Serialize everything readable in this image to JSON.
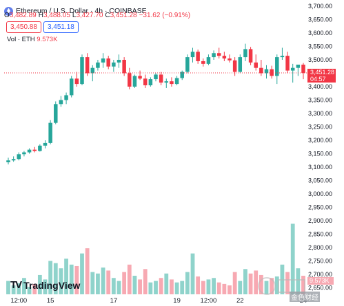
{
  "header": {
    "symbol": "Ethereum / U.S. Dollar · 4h · COINBASE",
    "ohlc": [
      {
        "k": "O",
        "v": "3,482.89"
      },
      {
        "k": "H",
        "v": "3,488.05"
      },
      {
        "k": "L",
        "v": "3,427.70"
      },
      {
        "k": "C",
        "v": "3,451.28"
      },
      {
        "k": "",
        "v": "−31.62 (−0.91%)"
      }
    ],
    "sell_price": "3,450.88",
    "buy_price": "3,451.18",
    "volume_label": "Vol · ETH",
    "volume_value": "9.573K"
  },
  "price_label": {
    "price": "3,451.28",
    "countdown": "04:57"
  },
  "volume_label_axis": "9.573K",
  "watermark": {
    "text": "金色财经"
  },
  "branding": {
    "name": "TradingView"
  },
  "colors": {
    "up": "#26a69a",
    "down": "#f23645",
    "vol_up": "#8fd3cb",
    "vol_down": "#f7a9b2"
  },
  "chart_data": {
    "type": "candlestick",
    "symbol": "Ethereum / U.S. Dollar",
    "interval": "4h",
    "exchange": "COINBASE",
    "y_ticks": [
      3100,
      3150,
      3200,
      3250,
      3300,
      3350,
      3400,
      3450,
      3500,
      3550,
      3600,
      3650,
      3700
    ],
    "volume_ticks": [
      2650,
      2700,
      2750,
      2800,
      2850,
      2900
    ],
    "ylim": [
      3100,
      3700
    ],
    "x_ticks": [
      {
        "label": "12:00",
        "index": 2
      },
      {
        "label": "15",
        "index": 8
      },
      {
        "label": "17",
        "index": 20
      },
      {
        "label": "19",
        "index": 32
      },
      {
        "label": "12:00",
        "index": 38
      },
      {
        "label": "22",
        "index": 44
      },
      {
        "label": "24",
        "index": 56
      }
    ],
    "last_price": 3451.28,
    "candles": [
      {
        "o": 3118,
        "h": 3135,
        "l": 3110,
        "c": 3125,
        "v": 0.18
      },
      {
        "o": 3125,
        "h": 3140,
        "l": 3120,
        "c": 3130,
        "v": 0.12
      },
      {
        "o": 3130,
        "h": 3155,
        "l": 3125,
        "c": 3148,
        "v": 0.15
      },
      {
        "o": 3148,
        "h": 3160,
        "l": 3140,
        "c": 3155,
        "v": 0.22
      },
      {
        "o": 3155,
        "h": 3170,
        "l": 3150,
        "c": 3165,
        "v": 0.1
      },
      {
        "o": 3165,
        "h": 3175,
        "l": 3155,
        "c": 3160,
        "v": 0.14
      },
      {
        "o": 3160,
        "h": 3185,
        "l": 3158,
        "c": 3180,
        "v": 0.26
      },
      {
        "o": 3180,
        "h": 3200,
        "l": 3170,
        "c": 3190,
        "v": 0.2
      },
      {
        "o": 3190,
        "h": 3275,
        "l": 3185,
        "c": 3265,
        "v": 0.45
      },
      {
        "o": 3265,
        "h": 3345,
        "l": 3260,
        "c": 3335,
        "v": 0.42
      },
      {
        "o": 3335,
        "h": 3365,
        "l": 3325,
        "c": 3350,
        "v": 0.35
      },
      {
        "o": 3350,
        "h": 3378,
        "l": 3335,
        "c": 3368,
        "v": 0.48
      },
      {
        "o": 3368,
        "h": 3440,
        "l": 3360,
        "c": 3430,
        "v": 0.4
      },
      {
        "o": 3430,
        "h": 3455,
        "l": 3400,
        "c": 3410,
        "v": 0.38
      },
      {
        "o": 3410,
        "h": 3520,
        "l": 3405,
        "c": 3510,
        "v": 0.55
      },
      {
        "o": 3510,
        "h": 3525,
        "l": 3440,
        "c": 3450,
        "v": 0.62
      },
      {
        "o": 3450,
        "h": 3480,
        "l": 3420,
        "c": 3470,
        "v": 0.3
      },
      {
        "o": 3470,
        "h": 3500,
        "l": 3460,
        "c": 3490,
        "v": 0.28
      },
      {
        "o": 3490,
        "h": 3525,
        "l": 3470,
        "c": 3505,
        "v": 0.36
      },
      {
        "o": 3505,
        "h": 3515,
        "l": 3465,
        "c": 3475,
        "v": 0.32
      },
      {
        "o": 3475,
        "h": 3500,
        "l": 3455,
        "c": 3490,
        "v": 0.22
      },
      {
        "o": 3490,
        "h": 3520,
        "l": 3470,
        "c": 3500,
        "v": 0.18
      },
      {
        "o": 3500,
        "h": 3510,
        "l": 3440,
        "c": 3450,
        "v": 0.3
      },
      {
        "o": 3450,
        "h": 3470,
        "l": 3390,
        "c": 3400,
        "v": 0.4
      },
      {
        "o": 3400,
        "h": 3445,
        "l": 3395,
        "c": 3440,
        "v": 0.25
      },
      {
        "o": 3440,
        "h": 3460,
        "l": 3425,
        "c": 3430,
        "v": 0.2
      },
      {
        "o": 3430,
        "h": 3445,
        "l": 3395,
        "c": 3405,
        "v": 0.34
      },
      {
        "o": 3405,
        "h": 3435,
        "l": 3400,
        "c": 3428,
        "v": 0.16
      },
      {
        "o": 3428,
        "h": 3450,
        "l": 3420,
        "c": 3445,
        "v": 0.18
      },
      {
        "o": 3445,
        "h": 3455,
        "l": 3405,
        "c": 3415,
        "v": 0.22
      },
      {
        "o": 3415,
        "h": 3430,
        "l": 3395,
        "c": 3420,
        "v": 0.28
      },
      {
        "o": 3420,
        "h": 3435,
        "l": 3400,
        "c": 3410,
        "v": 0.2
      },
      {
        "o": 3410,
        "h": 3440,
        "l": 3405,
        "c": 3432,
        "v": 0.16
      },
      {
        "o": 3432,
        "h": 3460,
        "l": 3425,
        "c": 3455,
        "v": 0.18
      },
      {
        "o": 3455,
        "h": 3520,
        "l": 3450,
        "c": 3510,
        "v": 0.3
      },
      {
        "o": 3510,
        "h": 3545,
        "l": 3490,
        "c": 3530,
        "v": 0.55
      },
      {
        "o": 3530,
        "h": 3538,
        "l": 3485,
        "c": 3495,
        "v": 0.24
      },
      {
        "o": 3495,
        "h": 3505,
        "l": 3475,
        "c": 3485,
        "v": 0.18
      },
      {
        "o": 3485,
        "h": 3520,
        "l": 3480,
        "c": 3510,
        "v": 0.2
      },
      {
        "o": 3510,
        "h": 3535,
        "l": 3500,
        "c": 3525,
        "v": 0.22
      },
      {
        "o": 3525,
        "h": 3545,
        "l": 3505,
        "c": 3515,
        "v": 0.16
      },
      {
        "o": 3515,
        "h": 3530,
        "l": 3495,
        "c": 3505,
        "v": 0.14
      },
      {
        "o": 3505,
        "h": 3520,
        "l": 3490,
        "c": 3498,
        "v": 0.12
      },
      {
        "o": 3498,
        "h": 3510,
        "l": 3440,
        "c": 3455,
        "v": 0.3
      },
      {
        "o": 3455,
        "h": 3520,
        "l": 3450,
        "c": 3510,
        "v": 0.18
      },
      {
        "o": 3510,
        "h": 3560,
        "l": 3495,
        "c": 3540,
        "v": 0.34
      },
      {
        "o": 3540,
        "h": 3548,
        "l": 3480,
        "c": 3490,
        "v": 0.28
      },
      {
        "o": 3490,
        "h": 3520,
        "l": 3460,
        "c": 3470,
        "v": 0.32
      },
      {
        "o": 3470,
        "h": 3500,
        "l": 3440,
        "c": 3450,
        "v": 0.26
      },
      {
        "o": 3450,
        "h": 3480,
        "l": 3430,
        "c": 3465,
        "v": 0.18
      },
      {
        "o": 3465,
        "h": 3478,
        "l": 3430,
        "c": 3440,
        "v": 0.22
      },
      {
        "o": 3440,
        "h": 3520,
        "l": 3410,
        "c": 3510,
        "v": 0.24
      },
      {
        "o": 3510,
        "h": 3545,
        "l": 3500,
        "c": 3515,
        "v": 0.4
      },
      {
        "o": 3515,
        "h": 3530,
        "l": 3450,
        "c": 3460,
        "v": 0.3
      },
      {
        "o": 3460,
        "h": 3485,
        "l": 3415,
        "c": 3470,
        "v": 0.95
      },
      {
        "o": 3470,
        "h": 3478,
        "l": 3440,
        "c": 3482,
        "v": 0.35
      },
      {
        "o": 3482,
        "h": 3488,
        "l": 3428,
        "c": 3451,
        "v": 0.25
      }
    ]
  }
}
